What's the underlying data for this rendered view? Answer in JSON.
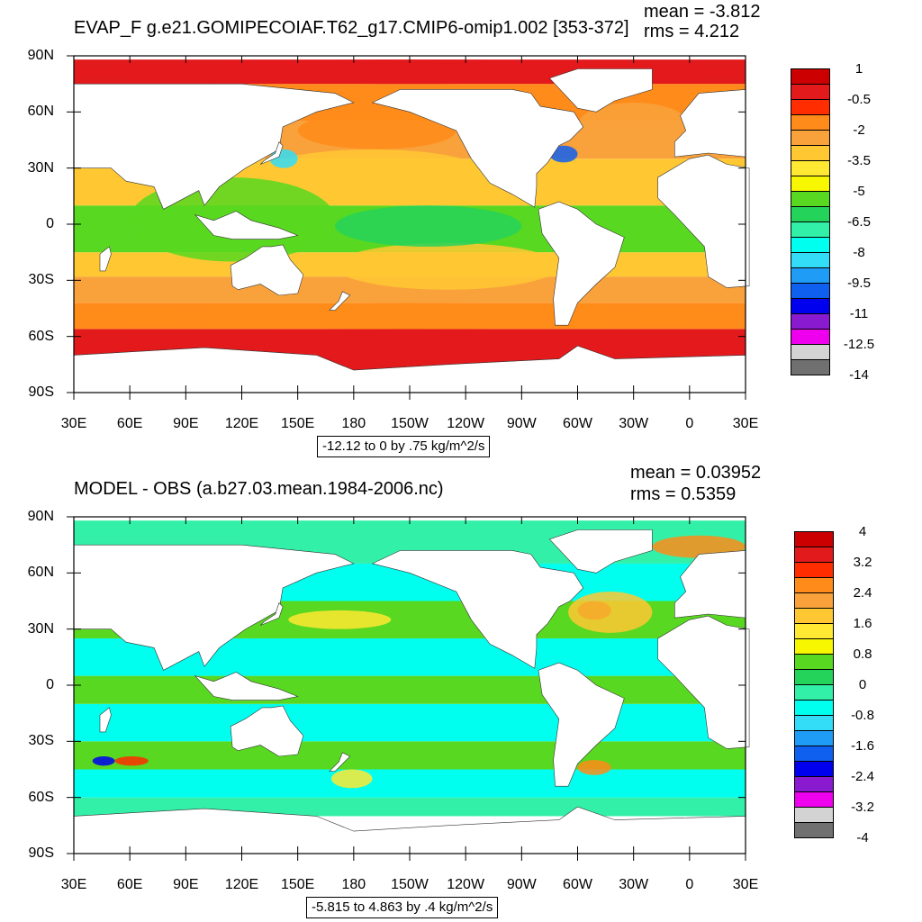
{
  "colors": {
    "land": "#ffffff",
    "frame": "#000000"
  },
  "chart_data": [
    {
      "type": "heatmap",
      "title": "EVAP_F g.e21.GOMIPECOIAF.T62_g17.CMIP6-omip1.002 [353-372]",
      "stats": {
        "mean": "mean = -3.812",
        "rms": "rms = 4.212"
      },
      "x_tick_labels": [
        "30E",
        "60E",
        "90E",
        "120E",
        "150E",
        "180",
        "150W",
        "120W",
        "90W",
        "60W",
        "30W",
        "0",
        "30E"
      ],
      "y_tick_labels": [
        "90N",
        "60N",
        "30N",
        "0",
        "30S",
        "60S",
        "90S"
      ],
      "xlim": [
        30,
        390
      ],
      "ylim": [
        -90,
        90
      ],
      "footer": "-12.12 to 0 by .75 kg/m^2/s",
      "colorbar": {
        "labels": [
          "1",
          "-0.5",
          "-2",
          "-3.5",
          "-5",
          "-6.5",
          "-8",
          "-9.5",
          "-11",
          "-12.5",
          "-14"
        ],
        "colors": [
          "#cc0000",
          "#e31a1c",
          "#ff2d00",
          "#ff8c1a",
          "#f9a23c",
          "#ffc832",
          "#ffe933",
          "#f7f700",
          "#58d820",
          "#24d45a",
          "#33f0a8",
          "#00ffee",
          "#33ddf8",
          "#1f9cf5",
          "#1060f0",
          "#0000ee",
          "#8a1ad0",
          "#ee00ee",
          "#d3d3d3",
          "#707070"
        ],
        "label_mode": "odd"
      },
      "regions": [
        {
          "name": "arctic-ice-edge",
          "color": "#e31a1c",
          "lon": [
            30,
            390
          ],
          "lat": [
            75,
            88
          ]
        },
        {
          "name": "southern-ocean-high",
          "color": "#e31a1c",
          "lon": [
            30,
            390
          ],
          "lat": [
            -78,
            -56
          ]
        },
        {
          "name": "southern-midlat",
          "color": "#ff8c1a",
          "lon": [
            30,
            390
          ],
          "lat": [
            -56,
            -42
          ]
        },
        {
          "name": "north-pacific",
          "color": "#ff8c1a",
          "lon": [
            150,
            235
          ],
          "lat": [
            40,
            60
          ]
        },
        {
          "name": "north-atlantic",
          "color": "#f9a23c",
          "lon": [
            300,
            360
          ],
          "lat": [
            40,
            65
          ]
        },
        {
          "name": "subtropics-north",
          "color": "#ffc832",
          "lon": [
            130,
            250
          ],
          "lat": [
            15,
            40
          ]
        },
        {
          "name": "subtropics-south",
          "color": "#ffc832",
          "lon": [
            170,
            290
          ],
          "lat": [
            -35,
            -10
          ]
        },
        {
          "name": "warm-pool",
          "color": "#58d820",
          "lon": [
            60,
            170
          ],
          "lat": [
            -20,
            25
          ]
        },
        {
          "name": "tropical-pacific",
          "color": "#24d45a",
          "lon": [
            170,
            270
          ],
          "lat": [
            -12,
            10
          ]
        },
        {
          "name": "kuroshio",
          "color": "#33ddf8",
          "lon": [
            135,
            150
          ],
          "lat": [
            30,
            40
          ]
        },
        {
          "name": "gulf-stream",
          "color": "#1060f0",
          "lon": [
            285,
            300
          ],
          "lat": [
            33,
            42
          ]
        }
      ],
      "bands": [
        {
          "lat": -90,
          "color": "#ffffff"
        },
        {
          "lat": -78,
          "color": "#e31a1c"
        },
        {
          "lat": -56,
          "color": "#ff8c1a"
        },
        {
          "lat": -42,
          "color": "#f9a23c"
        },
        {
          "lat": -28,
          "color": "#ffc832"
        },
        {
          "lat": -15,
          "color": "#58d820"
        },
        {
          "lat": 10,
          "color": "#ffc832"
        },
        {
          "lat": 35,
          "color": "#f9a23c"
        },
        {
          "lat": 55,
          "color": "#ff8c1a"
        },
        {
          "lat": 75,
          "color": "#e31a1c"
        },
        {
          "lat": 88,
          "color": "#ffffff"
        }
      ]
    },
    {
      "type": "heatmap",
      "title": "MODEL - OBS (a.b27.03.mean.1984-2006.nc)",
      "stats": {
        "mean": "mean = 0.03952",
        "rms": "rms = 0.5359"
      },
      "x_tick_labels": [
        "30E",
        "60E",
        "90E",
        "120E",
        "150E",
        "180",
        "150W",
        "120W",
        "90W",
        "60W",
        "30W",
        "0",
        "30E"
      ],
      "y_tick_labels": [
        "90N",
        "60N",
        "30N",
        "0",
        "30S",
        "60S",
        "90S"
      ],
      "xlim": [
        30,
        390
      ],
      "ylim": [
        -90,
        90
      ],
      "footer": "-5.815 to 4.863 by .4 kg/m^2/s",
      "colorbar": {
        "labels": [
          "4",
          "3.2",
          "2.4",
          "1.6",
          "0.8",
          "0",
          "-0.8",
          "-1.6",
          "-2.4",
          "-3.2",
          "-4"
        ],
        "colors": [
          "#cc0000",
          "#e31a1c",
          "#ff2d00",
          "#ff8c1a",
          "#f9a23c",
          "#ffc832",
          "#ffe933",
          "#f7f700",
          "#58d820",
          "#24d45a",
          "#33f0a8",
          "#00ffee",
          "#33ddf8",
          "#1f9cf5",
          "#1060f0",
          "#0000ee",
          "#8a1ad0",
          "#ee00ee",
          "#d3d3d3",
          "#707070"
        ],
        "label_mode": "odd"
      },
      "regions": [
        {
          "name": "gulf-stream-pos",
          "color": "#cc0000",
          "lon": [
            300,
            318
          ],
          "lat": [
            35,
            45
          ]
        },
        {
          "name": "north-atlantic-pos",
          "color": "#ffc832",
          "lon": [
            295,
            340
          ],
          "lat": [
            28,
            50
          ]
        },
        {
          "name": "kuroshio-ext-pos",
          "color": "#ffe933",
          "lon": [
            145,
            200
          ],
          "lat": [
            30,
            40
          ]
        },
        {
          "name": "agulhas-pos",
          "color": "#ff2d00",
          "lon": [
            52,
            70
          ],
          "lat": [
            -43,
            -38
          ]
        },
        {
          "name": "agulhas-neg",
          "color": "#0000ee",
          "lon": [
            40,
            52
          ],
          "lat": [
            -43,
            -38
          ]
        },
        {
          "name": "south-atlantic-pos",
          "color": "#ff8c1a",
          "lon": [
            300,
            318
          ],
          "lat": [
            -48,
            -40
          ]
        },
        {
          "name": "tasman-pos",
          "color": "#ffe933",
          "lon": [
            168,
            190
          ],
          "lat": [
            -55,
            -45
          ]
        },
        {
          "name": "arctic-pos",
          "color": "#ff8c1a",
          "lon": [
            340,
            390
          ],
          "lat": [
            68,
            80
          ]
        }
      ],
      "bands": [
        {
          "lat": -90,
          "color": "#ffffff"
        },
        {
          "lat": -70,
          "color": "#33f0a8"
        },
        {
          "lat": -60,
          "color": "#00ffee"
        },
        {
          "lat": -45,
          "color": "#58d820"
        },
        {
          "lat": -30,
          "color": "#00ffee"
        },
        {
          "lat": -10,
          "color": "#58d820"
        },
        {
          "lat": 5,
          "color": "#00ffee"
        },
        {
          "lat": 25,
          "color": "#58d820"
        },
        {
          "lat": 45,
          "color": "#00ffee"
        },
        {
          "lat": 65,
          "color": "#33f0a8"
        },
        {
          "lat": 88,
          "color": "#ffffff"
        }
      ]
    }
  ],
  "continents": [
    {
      "name": "africa",
      "pts": [
        [
          360,
          35
        ],
        [
          370,
          37
        ],
        [
          380,
          32
        ],
        [
          392,
          30
        ],
        [
          392,
          -33
        ],
        [
          380,
          -34
        ],
        [
          370,
          -28
        ],
        [
          368,
          -12
        ],
        [
          352,
          5
        ],
        [
          343,
          14
        ],
        [
          343,
          25
        ]
      ]
    },
    {
      "name": "eurasia",
      "pts": [
        [
          30,
          30
        ],
        [
          30,
          75
        ],
        [
          120,
          75
        ],
        [
          170,
          70
        ],
        [
          180,
          65
        ],
        [
          160,
          60
        ],
        [
          142,
          52
        ],
        [
          140,
          40
        ],
        [
          122,
          30
        ],
        [
          108,
          20
        ],
        [
          100,
          10
        ],
        [
          97,
          18
        ],
        [
          78,
          8
        ],
        [
          73,
          20
        ],
        [
          58,
          23
        ],
        [
          50,
          30
        ],
        [
          35,
          30
        ]
      ]
    },
    {
      "name": "europe",
      "pts": [
        [
          352,
          36
        ],
        [
          352,
          44
        ],
        [
          358,
          50
        ],
        [
          355,
          58
        ],
        [
          365,
          70
        ],
        [
          390,
          72
        ],
        [
          390,
          36
        ],
        [
          370,
          38
        ]
      ]
    },
    {
      "name": "north-america",
      "pts": [
        [
          190,
          65
        ],
        [
          210,
          60
        ],
        [
          235,
          50
        ],
        [
          243,
          35
        ],
        [
          253,
          22
        ],
        [
          265,
          16
        ],
        [
          277,
          9
        ],
        [
          278,
          20
        ],
        [
          278,
          27
        ],
        [
          284,
          33
        ],
        [
          290,
          42
        ],
        [
          296,
          45
        ],
        [
          303,
          52
        ],
        [
          298,
          60
        ],
        [
          280,
          63
        ],
        [
          275,
          70
        ],
        [
          265,
          72
        ],
        [
          240,
          72
        ],
        [
          205,
          72
        ]
      ]
    },
    {
      "name": "greenland",
      "pts": [
        [
          300,
          62
        ],
        [
          310,
          60
        ],
        [
          320,
          66
        ],
        [
          340,
          72
        ],
        [
          340,
          83
        ],
        [
          300,
          83
        ],
        [
          285,
          78
        ]
      ]
    },
    {
      "name": "south-america",
      "pts": [
        [
          279,
          8
        ],
        [
          290,
          12
        ],
        [
          300,
          8
        ],
        [
          310,
          0
        ],
        [
          325,
          -7
        ],
        [
          320,
          -23
        ],
        [
          310,
          -32
        ],
        [
          300,
          -42
        ],
        [
          295,
          -54
        ],
        [
          288,
          -54
        ],
        [
          287,
          -40
        ],
        [
          290,
          -18
        ],
        [
          281,
          -5
        ]
      ]
    },
    {
      "name": "australia",
      "pts": [
        [
          114,
          -22
        ],
        [
          122,
          -18
        ],
        [
          131,
          -12
        ],
        [
          136,
          -12
        ],
        [
          142,
          -11
        ],
        [
          146,
          -19
        ],
        [
          153,
          -27
        ],
        [
          150,
          -37
        ],
        [
          140,
          -38
        ],
        [
          130,
          -32
        ],
        [
          118,
          -35
        ],
        [
          115,
          -33
        ]
      ]
    },
    {
      "name": "antarctica",
      "pts": [
        [
          30,
          -70
        ],
        [
          100,
          -66
        ],
        [
          160,
          -70
        ],
        [
          180,
          -78
        ],
        [
          230,
          -75
        ],
        [
          290,
          -72
        ],
        [
          300,
          -65
        ],
        [
          320,
          -72
        ],
        [
          390,
          -70
        ],
        [
          390,
          -90
        ],
        [
          30,
          -90
        ]
      ]
    },
    {
      "name": "new-zealand",
      "pts": [
        [
          167,
          -46
        ],
        [
          172,
          -41
        ],
        [
          174,
          -36
        ],
        [
          178,
          -38
        ],
        [
          174,
          -42
        ],
        [
          170,
          -46
        ]
      ]
    },
    {
      "name": "madagascar",
      "pts": [
        [
          44,
          -25
        ],
        [
          44,
          -16
        ],
        [
          49,
          -12
        ],
        [
          50,
          -16
        ],
        [
          47,
          -25
        ]
      ]
    },
    {
      "name": "indonesia",
      "pts": [
        [
          95,
          5
        ],
        [
          105,
          -6
        ],
        [
          115,
          -8
        ],
        [
          125,
          -8
        ],
        [
          140,
          -8
        ],
        [
          150,
          -6
        ],
        [
          140,
          -2
        ],
        [
          125,
          2
        ],
        [
          117,
          7
        ],
        [
          105,
          2
        ]
      ]
    },
    {
      "name": "japan",
      "pts": [
        [
          130,
          32
        ],
        [
          135,
          34
        ],
        [
          140,
          36
        ],
        [
          142,
          42
        ],
        [
          140,
          44
        ],
        [
          138,
          38
        ],
        [
          132,
          34
        ]
      ]
    }
  ]
}
